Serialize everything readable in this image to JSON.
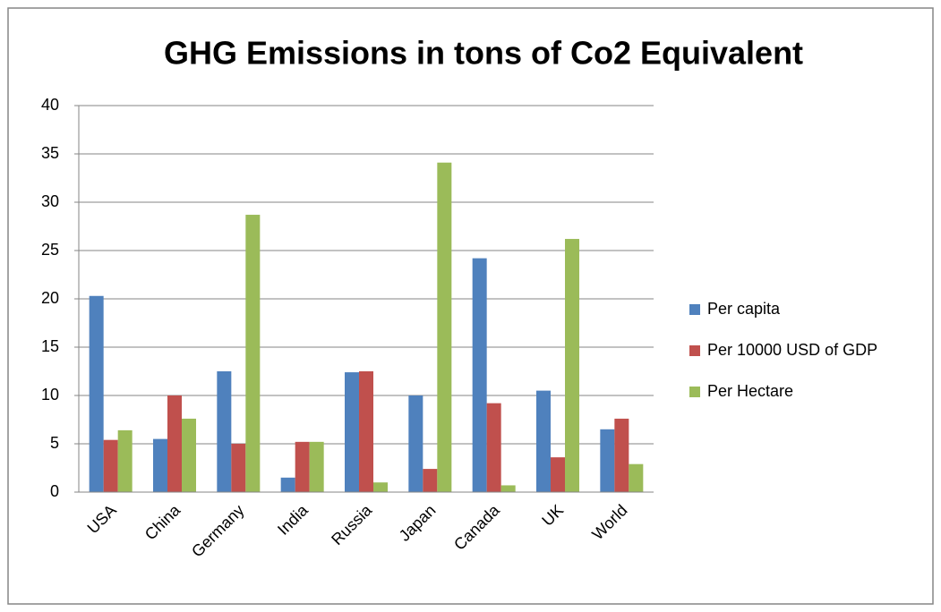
{
  "chart_data": {
    "type": "bar",
    "title": "GHG Emissions in tons of Co2 Equivalent",
    "categories": [
      "USA",
      "China",
      "Germany",
      "India",
      "Russia",
      "Japan",
      "Canada",
      "UK",
      "World"
    ],
    "series": [
      {
        "name": "Per capita",
        "color": "#4f81bd",
        "values": [
          20.3,
          5.5,
          12.5,
          1.5,
          12.4,
          10,
          24.2,
          10.5,
          6.5
        ]
      },
      {
        "name": "Per 10000 USD of GDP",
        "color": "#c0504d",
        "values": [
          5.4,
          10,
          5,
          5.2,
          12.5,
          2.4,
          9.2,
          3.6,
          7.6
        ]
      },
      {
        "name": "Per Hectare",
        "color": "#9bbb59",
        "values": [
          6.4,
          7.6,
          28.7,
          5.2,
          1.0,
          34.1,
          0.7,
          26.2,
          2.9
        ]
      }
    ],
    "ylim": [
      0,
      40
    ],
    "yticks": [
      0,
      5,
      10,
      15,
      20,
      25,
      30,
      35,
      40
    ],
    "grid": true,
    "legend": "right"
  }
}
